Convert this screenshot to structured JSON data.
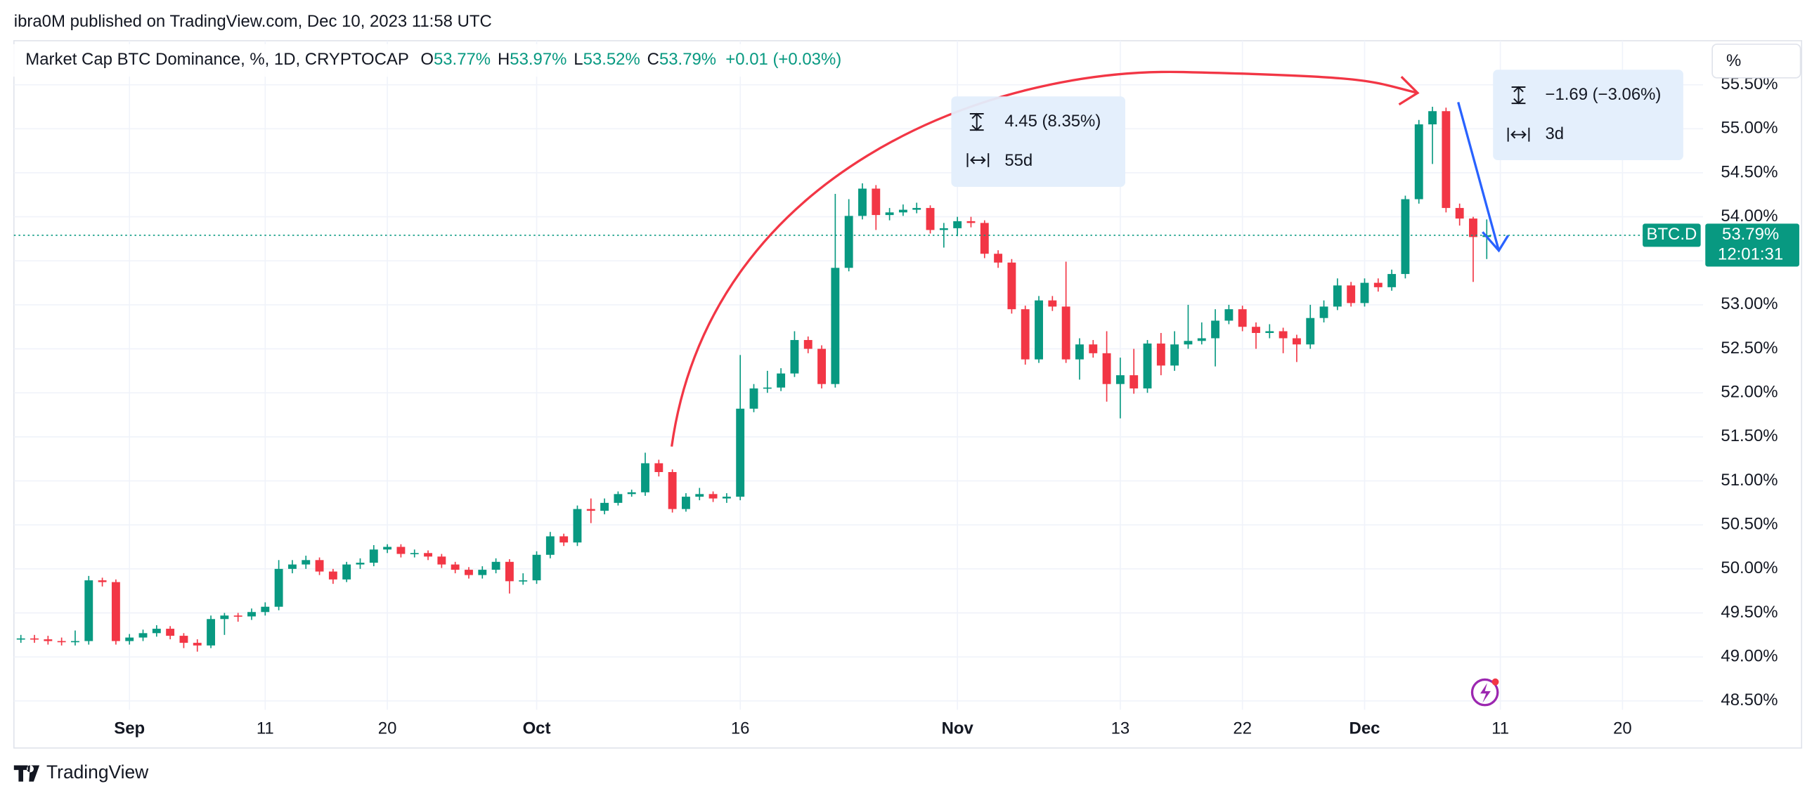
{
  "header": {
    "published": "ibra0M published on TradingView.com, Dec 10, 2023 11:58 UTC"
  },
  "scale_button": "%",
  "footer": {
    "brand": "TradingView"
  },
  "chart_data": {
    "type": "candlestick",
    "title": "Market Cap BTC Dominance, %, 1D, CRYPTOCAP",
    "ohlc_legend": {
      "labels": [
        "O",
        "H",
        "L",
        "C"
      ],
      "values": [
        "53.77%",
        "53.97%",
        "53.52%",
        "53.79%"
      ],
      "change": "+0.01 (+0.03%)"
    },
    "up_color": "#089981",
    "down_color": "#f23645",
    "x": [
      "Aug 24",
      "Aug 25",
      "Aug 26",
      "Aug 27",
      "Aug 28",
      "Aug 29",
      "Aug 30",
      "Aug 31",
      "Sep 1",
      "Sep 2",
      "Sep 3",
      "Sep 4",
      "Sep 5",
      "Sep 6",
      "Sep 7",
      "Sep 8",
      "Sep 9",
      "Sep 10",
      "Sep 11",
      "Sep 12",
      "Sep 13",
      "Sep 14",
      "Sep 15",
      "Sep 16",
      "Sep 17",
      "Sep 18",
      "Sep 19",
      "Sep 20",
      "Sep 21",
      "Sep 22",
      "Sep 23",
      "Sep 24",
      "Sep 25",
      "Sep 26",
      "Sep 27",
      "Sep 28",
      "Sep 29",
      "Sep 30",
      "Oct 1",
      "Oct 2",
      "Oct 3",
      "Oct 4",
      "Oct 5",
      "Oct 6",
      "Oct 7",
      "Oct 8",
      "Oct 9",
      "Oct 10",
      "Oct 11",
      "Oct 12",
      "Oct 13",
      "Oct 14",
      "Oct 15",
      "Oct 16",
      "Oct 17",
      "Oct 18",
      "Oct 19",
      "Oct 20",
      "Oct 21",
      "Oct 22",
      "Oct 23",
      "Oct 24",
      "Oct 25",
      "Oct 26",
      "Oct 27",
      "Oct 28",
      "Oct 29",
      "Oct 30",
      "Oct 31",
      "Nov 1",
      "Nov 2",
      "Nov 3",
      "Nov 4",
      "Nov 5",
      "Nov 6",
      "Nov 7",
      "Nov 8",
      "Nov 9",
      "Nov 10",
      "Nov 11",
      "Nov 12",
      "Nov 13",
      "Nov 14",
      "Nov 15",
      "Nov 16",
      "Nov 17",
      "Nov 18",
      "Nov 19",
      "Nov 20",
      "Nov 21",
      "Nov 22",
      "Nov 23",
      "Nov 24",
      "Nov 25",
      "Nov 26",
      "Nov 27",
      "Nov 28",
      "Nov 29",
      "Nov 30",
      "Dec 1",
      "Dec 2",
      "Dec 3",
      "Dec 4",
      "Dec 5",
      "Dec 6",
      "Dec 7",
      "Dec 8",
      "Dec 9",
      "Dec 10"
    ],
    "open": [
      49.2,
      49.21,
      49.2,
      49.18,
      49.17,
      49.18,
      49.87,
      49.85,
      49.18,
      49.22,
      49.27,
      49.32,
      49.24,
      49.16,
      49.13,
      49.43,
      49.47,
      49.46,
      49.51,
      49.57,
      50.0,
      50.05,
      50.1,
      49.97,
      49.88,
      50.05,
      50.07,
      50.22,
      50.25,
      50.17,
      50.18,
      50.14,
      50.05,
      49.99,
      49.93,
      49.99,
      50.08,
      49.86,
      49.87,
      50.16,
      50.37,
      50.3,
      50.68,
      50.66,
      50.75,
      50.85,
      50.87,
      51.2,
      51.1,
      50.68,
      50.82,
      50.85,
      50.8,
      50.82,
      51.82,
      52.05,
      52.06,
      52.22,
      52.6,
      52.5,
      52.1,
      53.42,
      54.01,
      54.32,
      54.02,
      54.05,
      54.08,
      54.1,
      53.85,
      53.87,
      53.95,
      53.93,
      53.58,
      53.48,
      52.95,
      52.38,
      53.05,
      52.98,
      52.38,
      52.55,
      52.45,
      52.1,
      52.2,
      52.05,
      52.56,
      52.31,
      52.55,
      52.59,
      52.62,
      52.82,
      52.95,
      52.75,
      52.68,
      52.7,
      52.62,
      52.55,
      52.85,
      52.98,
      53.22,
      53.02,
      53.25,
      53.2,
      53.35,
      54.2,
      55.05,
      55.2,
      54.1,
      53.98,
      53.77
    ],
    "high": [
      49.25,
      49.25,
      49.24,
      49.22,
      49.3,
      49.92,
      49.9,
      49.88,
      49.26,
      49.31,
      49.36,
      49.35,
      49.27,
      49.2,
      49.47,
      49.5,
      49.5,
      49.55,
      49.62,
      50.1,
      50.1,
      50.15,
      50.13,
      50.0,
      50.08,
      50.12,
      50.27,
      50.28,
      50.28,
      50.22,
      50.21,
      50.17,
      50.08,
      50.02,
      50.03,
      50.12,
      50.11,
      49.95,
      50.2,
      50.42,
      50.4,
      50.72,
      50.8,
      50.8,
      50.88,
      50.9,
      51.32,
      51.24,
      51.13,
      50.86,
      50.92,
      50.88,
      50.86,
      52.43,
      52.1,
      52.25,
      52.28,
      52.7,
      52.64,
      52.54,
      54.26,
      54.2,
      54.38,
      54.36,
      54.1,
      54.14,
      54.16,
      54.13,
      53.93,
      54.0,
      54.0,
      53.96,
      53.62,
      53.52,
      52.99,
      53.1,
      53.1,
      53.49,
      52.62,
      52.6,
      52.7,
      52.4,
      52.5,
      52.6,
      52.68,
      52.7,
      53.0,
      52.8,
      52.95,
      53.0,
      52.99,
      52.8,
      52.78,
      52.74,
      52.66,
      53.0,
      53.05,
      53.3,
      53.26,
      53.3,
      53.3,
      53.4,
      54.24,
      55.1,
      55.25,
      55.24,
      54.15,
      54.0,
      53.97
    ],
    "low": [
      49.16,
      49.16,
      49.14,
      49.13,
      49.13,
      49.14,
      49.8,
      49.14,
      49.14,
      49.18,
      49.23,
      49.2,
      49.1,
      49.06,
      49.1,
      49.25,
      49.4,
      49.42,
      49.47,
      49.53,
      49.95,
      50.0,
      49.93,
      49.83,
      49.85,
      50.0,
      50.03,
      50.18,
      50.13,
      50.13,
      50.1,
      50.01,
      49.95,
      49.89,
      49.89,
      49.95,
      49.72,
      49.82,
      49.83,
      50.12,
      50.26,
      50.26,
      50.52,
      50.62,
      50.72,
      50.82,
      50.83,
      51.05,
      50.64,
      50.65,
      50.78,
      50.76,
      50.75,
      50.78,
      51.78,
      52.0,
      52.02,
      52.18,
      52.45,
      52.05,
      52.06,
      53.38,
      53.97,
      53.85,
      53.96,
      54.01,
      54.04,
      53.81,
      53.65,
      53.78,
      53.88,
      53.53,
      53.42,
      52.9,
      52.32,
      52.34,
      52.93,
      52.34,
      52.15,
      52.4,
      51.9,
      51.71,
      51.99,
      52.0,
      52.2,
      52.25,
      52.5,
      52.55,
      52.3,
      52.78,
      52.7,
      52.5,
      52.62,
      52.45,
      52.35,
      52.5,
      52.8,
      52.94,
      52.98,
      52.98,
      53.15,
      53.16,
      53.3,
      54.15,
      54.6,
      54.05,
      53.9,
      53.26,
      53.52
    ],
    "close": [
      49.21,
      49.2,
      49.18,
      49.17,
      49.18,
      49.87,
      49.85,
      49.18,
      49.22,
      49.27,
      49.32,
      49.24,
      49.16,
      49.13,
      49.43,
      49.47,
      49.46,
      49.51,
      49.57,
      50.0,
      50.05,
      50.1,
      49.97,
      49.88,
      50.05,
      50.07,
      50.22,
      50.25,
      50.17,
      50.18,
      50.14,
      50.05,
      49.99,
      49.93,
      49.99,
      50.08,
      49.86,
      49.87,
      50.16,
      50.37,
      50.3,
      50.68,
      50.66,
      50.75,
      50.85,
      50.87,
      51.2,
      51.1,
      50.68,
      50.82,
      50.85,
      50.8,
      50.82,
      51.82,
      52.05,
      52.06,
      52.22,
      52.6,
      52.5,
      52.1,
      53.42,
      54.01,
      54.32,
      54.02,
      54.05,
      54.08,
      54.1,
      53.85,
      53.87,
      53.95,
      53.93,
      53.58,
      53.48,
      52.95,
      52.38,
      53.05,
      52.98,
      52.38,
      52.55,
      52.45,
      52.1,
      52.2,
      52.05,
      52.56,
      52.31,
      52.55,
      52.59,
      52.62,
      52.82,
      52.95,
      52.75,
      52.68,
      52.7,
      52.62,
      52.55,
      52.85,
      52.98,
      53.22,
      53.02,
      53.25,
      53.2,
      53.35,
      54.2,
      55.05,
      55.2,
      54.1,
      53.98,
      53.77,
      53.79
    ],
    "ylim": [
      48.4,
      56.0
    ],
    "yticks": [
      {
        "value": 48.5,
        "label": "48.50%"
      },
      {
        "value": 49.0,
        "label": "49.00%"
      },
      {
        "value": 49.5,
        "label": "49.50%"
      },
      {
        "value": 50.0,
        "label": "50.00%"
      },
      {
        "value": 50.5,
        "label": "50.50%"
      },
      {
        "value": 51.0,
        "label": "51.00%"
      },
      {
        "value": 51.5,
        "label": "51.50%"
      },
      {
        "value": 52.0,
        "label": "52.00%"
      },
      {
        "value": 52.5,
        "label": "52.50%"
      },
      {
        "value": 53.0,
        "label": "53.00%"
      },
      {
        "value": 53.5,
        "label": "53.50%"
      },
      {
        "value": 54.0,
        "label": "54.00%"
      },
      {
        "value": 54.5,
        "label": "54.50%"
      },
      {
        "value": 55.0,
        "label": "55.00%"
      },
      {
        "value": 55.5,
        "label": "55.50%"
      }
    ],
    "xticks": [
      {
        "value": "Sep 1",
        "label": "Sep"
      },
      {
        "value": "Sep 11",
        "label": "11"
      },
      {
        "value": "Sep 20",
        "label": "20"
      },
      {
        "value": "Oct 1",
        "label": "Oct"
      },
      {
        "value": "Oct 16",
        "label": "16"
      },
      {
        "value": "Nov 1",
        "label": "Nov"
      },
      {
        "value": "Nov 13",
        "label": "13"
      },
      {
        "value": "Nov 22",
        "label": "22"
      },
      {
        "value": "Dec 1",
        "label": "Dec"
      },
      {
        "value": "Dec 11",
        "label": "11"
      },
      {
        "value": "Dec 20",
        "label": "20"
      }
    ],
    "grid": true,
    "last_price": {
      "symbol": "BTC.D",
      "label": "53.79%",
      "countdown": "12:01:31"
    },
    "annotations": [
      {
        "change": "4.45 (8.35%)",
        "span": "55d"
      },
      {
        "change": "−1.69 (−3.06%)",
        "span": "3d"
      }
    ]
  }
}
